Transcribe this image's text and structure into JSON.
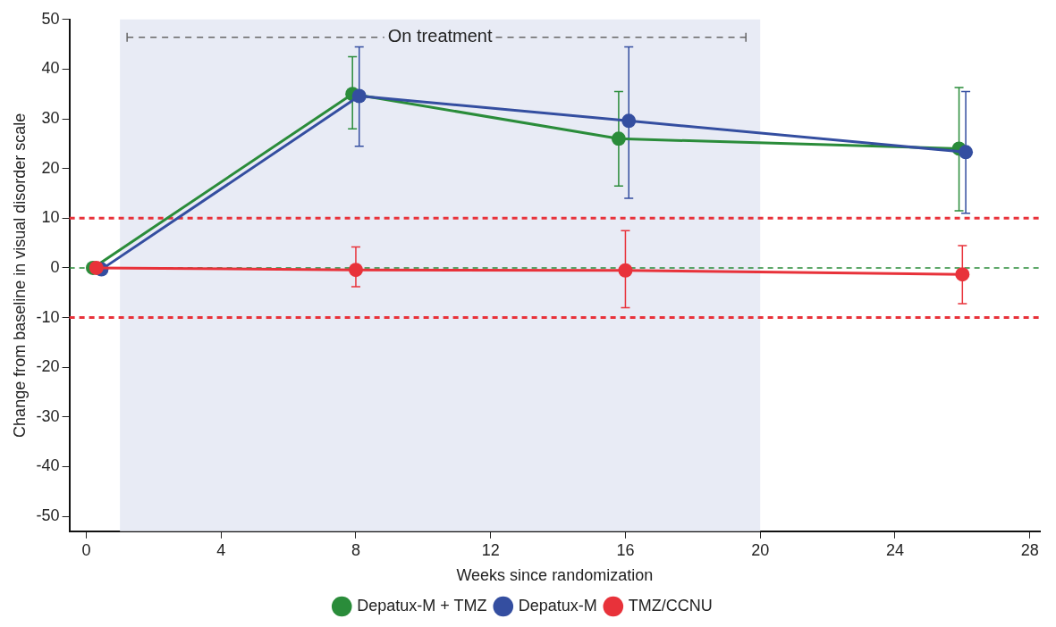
{
  "chart_data": {
    "type": "line",
    "xlabel": "Weeks since randomization",
    "ylabel": "Change from baseline in visual disorder scale",
    "series": [
      {
        "name": "Depatux-M + TMZ",
        "color": "#2a8c3a",
        "x": [
          0.2,
          7.9,
          15.8,
          25.9
        ],
        "values": [
          0,
          35,
          26,
          24
        ],
        "errors": [
          null,
          [
            28,
            42.5
          ],
          [
            16.5,
            35.5
          ],
          [
            11.5,
            36.3
          ]
        ]
      },
      {
        "name": "Depatux-M",
        "color": "#344ea0",
        "x": [
          0.45,
          8.1,
          16.1,
          26.1
        ],
        "values": [
          -0.3,
          34.6,
          29.6,
          23.3
        ],
        "errors": [
          null,
          [
            24.5,
            44.5
          ],
          [
            14,
            44.5
          ],
          [
            11,
            35.5
          ]
        ]
      },
      {
        "name": "TMZ/CCNU",
        "color": "#e8323a",
        "x": [
          0.3,
          8,
          16,
          26
        ],
        "values": [
          0,
          -0.4,
          -0.5,
          -1.3
        ],
        "errors": [
          null,
          [
            -3.8,
            4.2
          ],
          [
            -8,
            7.5
          ],
          [
            -7.2,
            4.5
          ]
        ]
      }
    ],
    "xlim": [
      -0.5,
      28.3
    ],
    "xticks": [
      0,
      4,
      8,
      12,
      16,
      20,
      24,
      28
    ],
    "ylim": [
      -53,
      50
    ],
    "yticks": [
      -50,
      -40,
      -30,
      -20,
      -10,
      0,
      10,
      20,
      30,
      40,
      50
    ],
    "ref_lines": [
      {
        "axis": "y",
        "value": 10,
        "color": "#e8323a",
        "line_style": "dashed"
      },
      {
        "axis": "y",
        "value": -10,
        "color": "#e8323a",
        "line_style": "dashed"
      },
      {
        "axis": "y",
        "value": 0,
        "color": "#2a8c3a",
        "line_style": "dashed"
      }
    ],
    "bands": [
      {
        "axis": "x",
        "from": 1,
        "to": 20,
        "label": "On treatment",
        "color": "#e8ebf5"
      }
    ],
    "grid": false,
    "legend": "bottom",
    "marker": "circle",
    "line_style": "solid"
  }
}
